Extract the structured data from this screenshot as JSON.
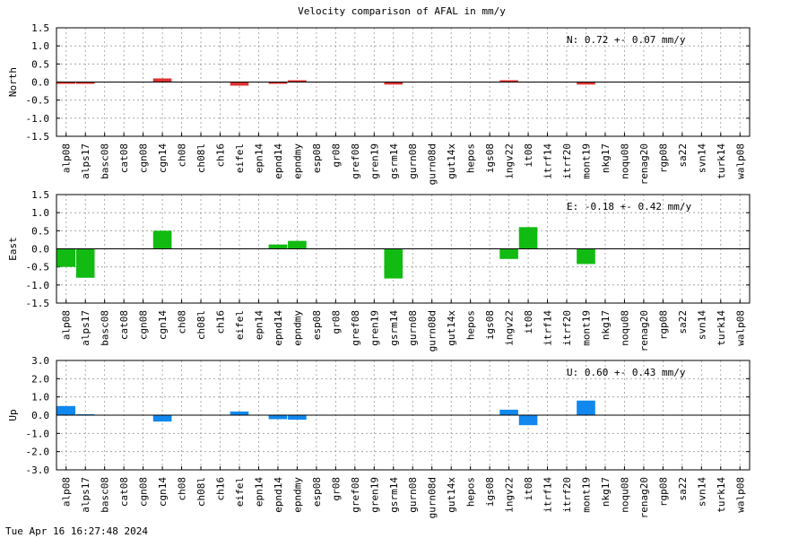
{
  "title": "Velocity comparison of AFAL in mm/y",
  "footer": "Tue Apr 16 16:27:48 2024",
  "chart_data": [
    {
      "type": "bar",
      "ylabel": "North",
      "stat_text": "N:   0.72 +-  0.07 mm/y",
      "color": "#dd3333",
      "ylim": [
        -1.5,
        1.5
      ],
      "yticks": [
        "1.5",
        "1.0",
        "0.5",
        "0.0",
        "-0.5",
        "-1.0",
        "-1.5"
      ],
      "grid": true,
      "categories": [
        "alp08",
        "alps17",
        "basc08",
        "cat08",
        "cgn08",
        "cgn14",
        "ch08",
        "ch08l",
        "ch16",
        "eifel",
        "epn14",
        "epnd14",
        "epndmy",
        "esp08",
        "gr08",
        "gref08",
        "gren19",
        "gsrm14",
        "gurn08",
        "gurn08d",
        "gut14x",
        "hepos",
        "igs08",
        "ingv22",
        "it08",
        "itrf14",
        "itrf20",
        "mont19",
        "nkg17",
        "noqu08",
        "renag20",
        "rgp08",
        "sa22",
        "svn14",
        "turk14",
        "walp08"
      ],
      "values": [
        -0.05,
        -0.05,
        0,
        0,
        0,
        0.1,
        0,
        0,
        0,
        -0.1,
        0,
        -0.05,
        0.05,
        0,
        0,
        0,
        0,
        -0.07,
        0,
        0,
        0,
        0,
        0,
        0.05,
        0,
        0,
        0,
        -0.07,
        0,
        0,
        0,
        0,
        0,
        0,
        0,
        0
      ]
    },
    {
      "type": "bar",
      "ylabel": "East",
      "stat_text": "E:  -0.18 +-  0.42 mm/y",
      "color": "#11bb11",
      "ylim": [
        -1.5,
        1.5
      ],
      "yticks": [
        "1.5",
        "1.0",
        "0.5",
        "0.0",
        "-0.5",
        "-1.0",
        "-1.5"
      ],
      "grid": true,
      "categories": [
        "alp08",
        "alps17",
        "basc08",
        "cat08",
        "cgn08",
        "cgn14",
        "ch08",
        "ch08l",
        "ch16",
        "eifel",
        "epn14",
        "epnd14",
        "epndmy",
        "esp08",
        "gr08",
        "gref08",
        "gren19",
        "gsrm14",
        "gurn08",
        "gurn08d",
        "gut14x",
        "hepos",
        "igs08",
        "ingv22",
        "it08",
        "itrf14",
        "itrf20",
        "mont19",
        "nkg17",
        "noqu08",
        "renag20",
        "rgp08",
        "sa22",
        "svn14",
        "turk14",
        "walp08"
      ],
      "values": [
        -0.5,
        -0.8,
        0,
        0,
        0,
        0.5,
        0,
        0,
        0,
        0,
        0,
        0.12,
        0.22,
        0,
        0,
        0,
        0,
        -0.82,
        0,
        0,
        0,
        0,
        0,
        -0.28,
        0.6,
        0,
        0,
        -0.42,
        0,
        0,
        0,
        0,
        0,
        0,
        0,
        0
      ]
    },
    {
      "type": "bar",
      "ylabel": "Up",
      "stat_text": "U:   0.60 +-  0.43 mm/y",
      "color": "#1188ee",
      "ylim": [
        -3.0,
        3.0
      ],
      "yticks": [
        "3.0",
        "2.0",
        "1.0",
        "0.0",
        "-1.0",
        "-2.0",
        "-3.0"
      ],
      "grid": true,
      "categories": [
        "alp08",
        "alps17",
        "basc08",
        "cat08",
        "cgn08",
        "cgn14",
        "ch08",
        "ch08l",
        "ch16",
        "eifel",
        "epn14",
        "epnd14",
        "epndmy",
        "esp08",
        "gr08",
        "gref08",
        "gren19",
        "gsrm14",
        "gurn08",
        "gurn08d",
        "gut14x",
        "hepos",
        "igs08",
        "ingv22",
        "it08",
        "itrf14",
        "itrf20",
        "mont19",
        "nkg17",
        "noqu08",
        "renag20",
        "rgp08",
        "sa22",
        "svn14",
        "turk14",
        "walp08"
      ],
      "values": [
        0.5,
        0.05,
        0,
        0,
        0,
        -0.35,
        0,
        0,
        0,
        0.2,
        0,
        -0.22,
        -0.25,
        0,
        0,
        0,
        0,
        0,
        0,
        0,
        0,
        0,
        0,
        0.3,
        -0.55,
        0,
        0,
        0.8,
        0,
        0,
        0,
        0,
        0,
        0,
        0,
        0
      ]
    }
  ]
}
